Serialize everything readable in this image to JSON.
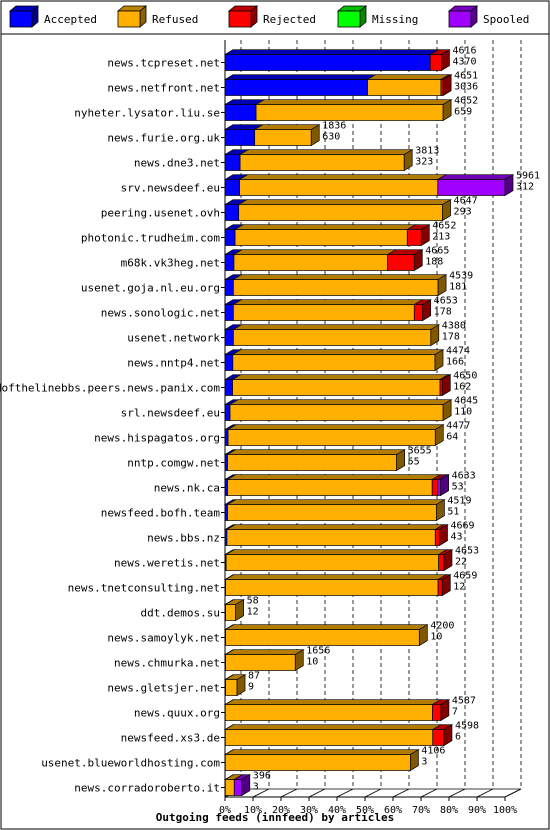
{
  "chart_data": {
    "type": "bar",
    "orientation": "horizontal",
    "stacked": true,
    "title": "Outgoing feeds (innfeed) by articles",
    "xlim": [
      0,
      100
    ],
    "x_ticks": [
      "0%",
      "10%",
      "20%",
      "30%",
      "40%",
      "50%",
      "60%",
      "70%",
      "80%",
      "90%",
      "100%"
    ],
    "legend": {
      "placement": "top",
      "items": [
        {
          "name": "Accepted",
          "color": "#0000ff"
        },
        {
          "name": "Refused",
          "color": "#ffb000"
        },
        {
          "name": "Rejected",
          "color": "#ff0000"
        },
        {
          "name": "Missing",
          "color": "#00ff00"
        },
        {
          "name": "Spooled",
          "color": "#a000ff"
        }
      ]
    },
    "categories": [
      "news.tcpreset.net",
      "news.netfront.net",
      "nyheter.lysator.liu.se",
      "news.furie.org.uk",
      "news.dne3.net",
      "srv.newsdeef.eu",
      "peering.usenet.ovh",
      "photonic.trudheim.com",
      "m68k.vk3heg.net",
      "usenet.goja.nl.eu.org",
      "news.sonologic.net",
      "usenet.network",
      "news.nntp4.net",
      "endofthelinebbs.peers.news.panix.com",
      "srl.newsdeef.eu",
      "news.hispagatos.org",
      "nntp.comgw.net",
      "news.nk.ca",
      "newsfeed.bofh.team",
      "news.bbs.nz",
      "news.weretis.net",
      "news.tnetconsulting.net",
      "ddt.demos.su",
      "news.samoylyk.net",
      "news.chmurka.net",
      "news.gletsjer.net",
      "news.quux.org",
      "newsfeed.xs3.de",
      "usenet.blueworldhosting.com",
      "news.corradoroberto.it"
    ],
    "offered": [
      4616,
      4651,
      4652,
      1836,
      3813,
      5961,
      4647,
      4652,
      4665,
      4539,
      4653,
      4380,
      4474,
      4650,
      4645,
      4477,
      3655,
      4633,
      4519,
      4669,
      4653,
      4659,
      58,
      4200,
      1656,
      87,
      4587,
      4598,
      4106,
      396
    ],
    "accepted_count": [
      4370,
      3036,
      659,
      630,
      323,
      312,
      293,
      213,
      188,
      181,
      178,
      178,
      166,
      162,
      110,
      64,
      55,
      53,
      51,
      43,
      22,
      12,
      12,
      10,
      10,
      9,
      7,
      6,
      3,
      3
    ],
    "series": [
      {
        "name": "Accepted",
        "values": [
          73.3,
          50.9,
          11.1,
          10.6,
          5.4,
          5.2,
          4.9,
          3.6,
          3.2,
          3.0,
          3.0,
          3.0,
          2.8,
          2.7,
          1.8,
          1.1,
          0.9,
          0.9,
          0.9,
          0.7,
          0.4,
          0.2,
          0.2,
          0.2,
          0.2,
          0.2,
          0.1,
          0.1,
          0.1,
          0.1
        ]
      },
      {
        "name": "Refused",
        "values": [
          0,
          26.2,
          66.8,
          20.2,
          58.6,
          70.8,
          72.8,
          61.5,
          54.9,
          73.1,
          64.6,
          70.5,
          72.2,
          74.1,
          76.1,
          74.0,
          60.4,
          73.1,
          74.6,
          74.4,
          75.9,
          75.9,
          3.6,
          69.2,
          24.9,
          4.1,
          74.0,
          74.1,
          66.1,
          3.2
        ]
      },
      {
        "name": "Rejected",
        "values": [
          4.0,
          0.8,
          0,
          0,
          0,
          0,
          0,
          5.0,
          9.5,
          0,
          3.0,
          0,
          0,
          0.8,
          0,
          0,
          0,
          2.0,
          0,
          1.5,
          1.9,
          1.5,
          0,
          0,
          0,
          0,
          3.0,
          4.0,
          0,
          0
        ]
      },
      {
        "name": "Missing",
        "values": [
          0,
          0,
          0,
          0,
          0,
          0,
          0,
          0,
          0,
          0,
          0,
          0,
          0,
          0,
          0,
          0,
          0,
          0,
          0,
          0,
          0,
          0,
          0,
          0,
          0,
          0,
          0,
          0,
          0,
          0
        ]
      },
      {
        "name": "Spooled",
        "values": [
          0,
          0,
          0,
          0,
          0,
          24.0,
          0,
          0,
          0,
          0,
          0,
          0,
          0,
          0,
          0,
          0,
          0,
          1.0,
          0,
          0,
          0,
          0,
          0,
          0,
          0,
          0,
          0,
          0,
          0,
          2.7
        ]
      }
    ]
  }
}
